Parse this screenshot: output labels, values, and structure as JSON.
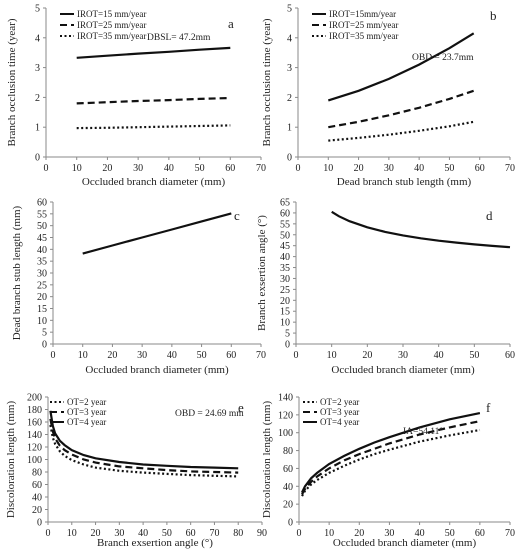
{
  "chart_data": [
    {
      "id": "a",
      "type": "line",
      "panel_label": "a",
      "xlabel": "Occluded branch diameter (mm)",
      "ylabel": "Branch occlusion time (year)",
      "xlim": [
        0,
        70
      ],
      "xticks": [
        0,
        10,
        20,
        30,
        40,
        50,
        60,
        70
      ],
      "ylim": [
        0,
        5
      ],
      "yticks": [
        0,
        1,
        2,
        3,
        4,
        5
      ],
      "legend_placement": "top-left",
      "annotation": "DBSL= 47.2mm",
      "series": [
        {
          "name": "IROT=15 mm/year",
          "style": "solid",
          "x": [
            10,
            20,
            30,
            40,
            50,
            60
          ],
          "y": [
            3.33,
            3.4,
            3.47,
            3.53,
            3.6,
            3.66
          ]
        },
        {
          "name": "IROT=25 mm/year",
          "style": "dashed",
          "x": [
            10,
            20,
            30,
            40,
            50,
            60
          ],
          "y": [
            1.8,
            1.84,
            1.88,
            1.91,
            1.95,
            1.98
          ]
        },
        {
          "name": "IROT=35 mm/year",
          "style": "dotted",
          "x": [
            10,
            20,
            30,
            40,
            50,
            60
          ],
          "y": [
            0.97,
            0.98,
            1.0,
            1.02,
            1.04,
            1.06
          ]
        }
      ]
    },
    {
      "id": "b",
      "type": "line",
      "panel_label": "b",
      "xlabel": "Dead branch stub length (mm)",
      "ylabel": "Branch occlusion time (year)",
      "xlim": [
        0,
        70
      ],
      "xticks": [
        0,
        10,
        20,
        30,
        40,
        50,
        60,
        70
      ],
      "ylim": [
        0,
        5
      ],
      "yticks": [
        0,
        1,
        2,
        3,
        4,
        5
      ],
      "legend_placement": "top-left",
      "annotation": "OBD = 23.7mm",
      "series": [
        {
          "name": "IROT=15mm/year",
          "style": "solid",
          "x": [
            10,
            20,
            30,
            40,
            50,
            58
          ],
          "y": [
            1.9,
            2.22,
            2.62,
            3.1,
            3.65,
            4.15
          ]
        },
        {
          "name": "IROT=25 mm/year",
          "style": "dashed",
          "x": [
            10,
            20,
            30,
            40,
            50,
            58
          ],
          "y": [
            1.0,
            1.18,
            1.4,
            1.65,
            1.95,
            2.22
          ]
        },
        {
          "name": "IROT=35 mm/year",
          "style": "dotted",
          "x": [
            10,
            20,
            30,
            40,
            50,
            58
          ],
          "y": [
            0.55,
            0.64,
            0.75,
            0.88,
            1.03,
            1.18
          ]
        }
      ]
    },
    {
      "id": "c",
      "type": "line",
      "panel_label": "c",
      "xlabel": "Occluded branch diameter (mm)",
      "ylabel": "Dead branch stub length (mm)",
      "xlim": [
        0,
        70
      ],
      "xticks": [
        0,
        10,
        20,
        30,
        40,
        50,
        60,
        70
      ],
      "ylim": [
        0,
        60
      ],
      "yticks": [
        0,
        5,
        10,
        15,
        20,
        25,
        30,
        35,
        40,
        45,
        50,
        55,
        60
      ],
      "series": [
        {
          "style": "solid",
          "x": [
            10,
            20,
            30,
            40,
            50,
            60
          ],
          "y": [
            38.2,
            41.6,
            45.0,
            48.4,
            51.8,
            55.2
          ]
        }
      ]
    },
    {
      "id": "d",
      "type": "line",
      "panel_label": "d",
      "xlabel": "Occluded branch diameter (mm)",
      "ylabel": "Branch exsertion angle (°)",
      "xlim": [
        0,
        60
      ],
      "xticks": [
        0,
        10,
        20,
        30,
        40,
        50,
        60
      ],
      "ylim": [
        0,
        65
      ],
      "yticks": [
        0,
        5,
        10,
        15,
        20,
        25,
        30,
        35,
        40,
        45,
        50,
        55,
        60,
        65
      ],
      "series": [
        {
          "style": "solid",
          "x": [
            10,
            12,
            15,
            20,
            25,
            30,
            35,
            40,
            45,
            50,
            55,
            60
          ],
          "y": [
            60.5,
            58.5,
            56.2,
            53.4,
            51.3,
            49.7,
            48.4,
            47.3,
            46.4,
            45.6,
            44.9,
            44.3
          ]
        }
      ]
    },
    {
      "id": "e",
      "type": "line",
      "panel_label": "e",
      "xlabel": "Branch exsertion angle (°)",
      "ylabel": "Discoloration length (mm)",
      "xlim": [
        0,
        90
      ],
      "xticks": [
        0,
        10,
        20,
        30,
        40,
        50,
        60,
        70,
        80,
        90
      ],
      "ylim": [
        0,
        200
      ],
      "yticks": [
        0,
        20,
        40,
        60,
        80,
        100,
        120,
        140,
        160,
        180,
        200
      ],
      "legend_placement": "top-left",
      "annotation": "OBD = 24.69 mm",
      "series": [
        {
          "name": "OT=2 year",
          "style": "dotted",
          "x": [
            1,
            2,
            3,
            5,
            7,
            10,
            15,
            20,
            30,
            40,
            50,
            60,
            70,
            80
          ],
          "y": [
            155,
            135,
            125,
            113,
            106,
            99,
            92,
            87,
            82,
            79,
            77,
            75,
            74,
            73
          ]
        },
        {
          "name": "OT=3 year",
          "style": "dashed",
          "x": [
            1,
            2,
            3,
            5,
            7,
            10,
            15,
            20,
            30,
            40,
            50,
            60,
            70,
            80
          ],
          "y": [
            165,
            145,
            134,
            122,
            115,
            108,
            100,
            95,
            89,
            86,
            83,
            81,
            80,
            79
          ]
        },
        {
          "name": "OT=4 year",
          "style": "solid",
          "x": [
            1,
            2,
            3,
            5,
            7,
            10,
            15,
            20,
            30,
            40,
            50,
            60,
            70,
            80
          ],
          "y": [
            178,
            154,
            142,
            130,
            123,
            115,
            107,
            102,
            96,
            92,
            90,
            88,
            87,
            86
          ]
        }
      ]
    },
    {
      "id": "f",
      "type": "line",
      "panel_label": "f",
      "xlabel": "Occluded branch diameter (mm)",
      "ylabel": "Discoloration length (mm)",
      "xlim": [
        0,
        70
      ],
      "xticks": [
        0,
        10,
        20,
        30,
        40,
        50,
        60,
        70
      ],
      "ylim": [
        0,
        140
      ],
      "yticks": [
        0,
        20,
        40,
        60,
        80,
        100,
        120,
        140
      ],
      "legend_placement": "top-left",
      "annotation": "IA=54.11°",
      "series": [
        {
          "name": "OT=2 year",
          "style": "dotted",
          "x": [
            1,
            2,
            4,
            6,
            10,
            15,
            20,
            25,
            30,
            40,
            50,
            60
          ],
          "y": [
            29,
            35,
            42,
            47,
            55,
            63,
            70,
            76,
            81,
            90,
            97,
            103
          ]
        },
        {
          "name": "OT=3 year",
          "style": "dashed",
          "x": [
            1,
            2,
            4,
            6,
            10,
            15,
            20,
            25,
            30,
            40,
            50,
            60
          ],
          "y": [
            31,
            37,
            45,
            51,
            60,
            69,
            76,
            82,
            88,
            98,
            106,
            113
          ]
        },
        {
          "name": "OT=4 year",
          "style": "solid",
          "x": [
            1,
            2,
            4,
            6,
            10,
            15,
            20,
            25,
            30,
            40,
            50,
            60
          ],
          "y": [
            33,
            40,
            49,
            55,
            65,
            74,
            82,
            89,
            95,
            106,
            115,
            122
          ]
        }
      ]
    }
  ]
}
